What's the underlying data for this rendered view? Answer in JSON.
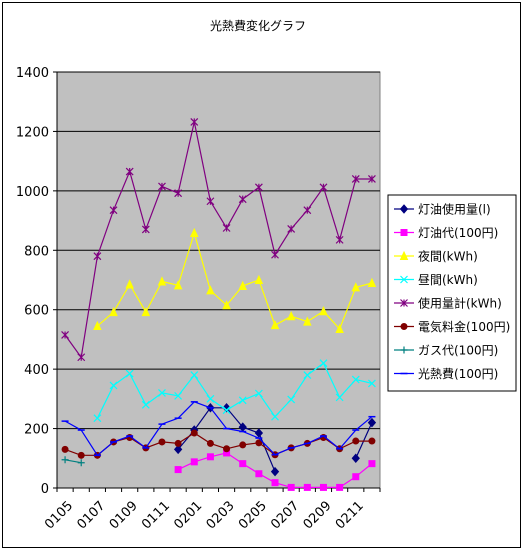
{
  "chart_data": {
    "type": "line",
    "title": "光熱費変化グラフ",
    "xlabel": "",
    "ylabel": "",
    "ylim": [
      0,
      1400
    ],
    "yticks": [
      0,
      200,
      400,
      600,
      800,
      1000,
      1200,
      1400
    ],
    "grid": "horizontal",
    "legend_position": "right",
    "plot_background": "#c0c0c0",
    "categories": [
      "0105",
      "0106",
      "0107",
      "0108",
      "0109",
      "0110",
      "0111",
      "0112",
      "0201",
      "0202",
      "0203",
      "0204",
      "0205",
      "0206",
      "0207",
      "0208",
      "0209",
      "0210",
      "0211",
      "0212"
    ],
    "x_tick_labels": [
      "0105",
      "0107",
      "0109",
      "0111",
      "0201",
      "0203",
      "0205",
      "0207",
      "0209",
      "0211"
    ],
    "series": [
      {
        "name": "灯油使用量(l)",
        "color": "#000080",
        "marker": "diamond",
        "values": [
          null,
          null,
          null,
          null,
          null,
          null,
          null,
          130,
          195,
          270,
          270,
          205,
          185,
          55,
          null,
          null,
          null,
          null,
          100,
          220
        ]
      },
      {
        "name": "灯油代(100円)",
        "color": "#ff00ff",
        "marker": "square",
        "values": [
          null,
          null,
          null,
          null,
          null,
          null,
          null,
          62,
          88,
          105,
          118,
          82,
          48,
          18,
          2,
          2,
          2,
          2,
          38,
          82
        ]
      },
      {
        "name": "夜間(kWh)",
        "color": "#ffff00",
        "marker": "triangle",
        "values": [
          null,
          null,
          545,
          592,
          685,
          592,
          695,
          682,
          858,
          665,
          615,
          680,
          700,
          548,
          578,
          560,
          595,
          535,
          675,
          690
        ]
      },
      {
        "name": "昼間(kWh)",
        "color": "#00ffff",
        "marker": "x",
        "values": [
          null,
          null,
          235,
          345,
          385,
          280,
          320,
          310,
          380,
          300,
          262,
          295,
          318,
          240,
          298,
          380,
          420,
          305,
          365,
          352
        ]
      },
      {
        "name": "使用量計(kWh)",
        "color": "#800080",
        "marker": "star",
        "values": [
          515,
          440,
          780,
          935,
          1065,
          870,
          1015,
          992,
          1232,
          965,
          875,
          972,
          1012,
          785,
          872,
          935,
          1012,
          835,
          1040,
          1040
        ]
      },
      {
        "name": "電気料金(100円)",
        "color": "#800000",
        "marker": "circle",
        "values": [
          130,
          110,
          110,
          155,
          170,
          135,
          155,
          150,
          185,
          150,
          132,
          145,
          152,
          112,
          135,
          150,
          170,
          132,
          158,
          158
        ]
      },
      {
        "name": "ガス代(100円)",
        "color": "#008080",
        "marker": "plus",
        "values": [
          95,
          85,
          null,
          null,
          null,
          null,
          null,
          null,
          null,
          null,
          null,
          null,
          null,
          null,
          null,
          null,
          null,
          null,
          null,
          null
        ]
      },
      {
        "name": "光熱費(100円)",
        "color": "#0000ff",
        "marker": "dash",
        "values": [
          225,
          195,
          110,
          155,
          175,
          135,
          215,
          235,
          290,
          270,
          200,
          190,
          168,
          112,
          135,
          150,
          175,
          132,
          195,
          240
        ]
      }
    ]
  }
}
